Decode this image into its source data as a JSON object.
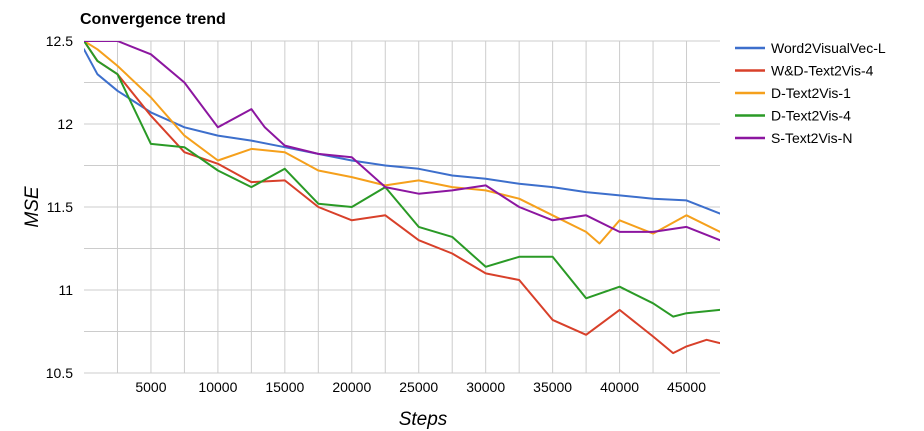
{
  "chart_data": {
    "type": "line",
    "title": "Convergence trend",
    "xlabel": "Steps",
    "ylabel": "MSE",
    "xlim": [
      0,
      47500
    ],
    "ylim": [
      10.5,
      12.5
    ],
    "x_ticks": [
      5000,
      10000,
      15000,
      20000,
      25000,
      30000,
      35000,
      40000,
      45000
    ],
    "y_ticks": [
      10.5,
      11,
      11.5,
      12,
      12.5
    ],
    "grid": true,
    "legend_position": "right",
    "series": [
      {
        "name": "Word2VisualVec-L",
        "color": "#3d6fcc",
        "x": [
          0,
          1000,
          2500,
          5000,
          7500,
          10000,
          12500,
          15000,
          17500,
          20000,
          22500,
          25000,
          27500,
          30000,
          32500,
          35000,
          37500,
          40000,
          42500,
          45000,
          47500
        ],
        "y": [
          12.45,
          12.3,
          12.2,
          12.07,
          11.98,
          11.93,
          11.9,
          11.86,
          11.82,
          11.78,
          11.75,
          11.73,
          11.69,
          11.67,
          11.64,
          11.62,
          11.59,
          11.57,
          11.55,
          11.54,
          11.46
        ]
      },
      {
        "name": "W&D-Text2Vis-4",
        "color": "#d8402a",
        "x": [
          0,
          1000,
          2500,
          5000,
          7500,
          10000,
          12500,
          15000,
          17500,
          20000,
          22500,
          25000,
          27500,
          30000,
          32500,
          35000,
          37500,
          40000,
          42500,
          44000,
          45000,
          46500,
          47500
        ],
        "y": [
          12.5,
          12.38,
          12.3,
          12.05,
          11.83,
          11.76,
          11.65,
          11.66,
          11.5,
          11.42,
          11.45,
          11.3,
          11.22,
          11.1,
          11.06,
          10.82,
          10.73,
          10.88,
          10.72,
          10.62,
          10.66,
          10.7,
          10.68
        ]
      },
      {
        "name": "D-Text2Vis-1",
        "color": "#f5a01c",
        "x": [
          0,
          1000,
          2500,
          5000,
          7500,
          10000,
          12500,
          15000,
          17500,
          20000,
          22500,
          25000,
          27500,
          30000,
          32500,
          35000,
          37500,
          38500,
          40000,
          42500,
          45000,
          47500
        ],
        "y": [
          12.5,
          12.45,
          12.35,
          12.16,
          11.93,
          11.78,
          11.85,
          11.83,
          11.72,
          11.68,
          11.63,
          11.66,
          11.62,
          11.6,
          11.55,
          11.45,
          11.35,
          11.28,
          11.42,
          11.34,
          11.45,
          11.35
        ]
      },
      {
        "name": "D-Text2Vis-4",
        "color": "#2a9a26",
        "x": [
          0,
          1000,
          2500,
          5000,
          7500,
          10000,
          12500,
          15000,
          17500,
          20000,
          22500,
          25000,
          27500,
          30000,
          32500,
          35000,
          37500,
          40000,
          42500,
          44000,
          45000,
          47500
        ],
        "y": [
          12.5,
          12.38,
          12.3,
          11.88,
          11.86,
          11.72,
          11.62,
          11.73,
          11.52,
          11.5,
          11.62,
          11.38,
          11.32,
          11.14,
          11.2,
          11.2,
          10.95,
          11.02,
          10.92,
          10.84,
          10.86,
          10.88
        ]
      },
      {
        "name": "S-Text2Vis-N",
        "color": "#8c16a0",
        "x": [
          0,
          1000,
          2500,
          5000,
          7500,
          10000,
          12500,
          13500,
          15000,
          17500,
          20000,
          22500,
          25000,
          27500,
          30000,
          32500,
          35000,
          37500,
          40000,
          42500,
          45000,
          47500
        ],
        "y": [
          12.5,
          12.5,
          12.5,
          12.42,
          12.25,
          11.98,
          12.09,
          11.98,
          11.87,
          11.82,
          11.8,
          11.62,
          11.58,
          11.6,
          11.63,
          11.5,
          11.42,
          11.45,
          11.35,
          11.35,
          11.38,
          11.3
        ]
      }
    ]
  }
}
